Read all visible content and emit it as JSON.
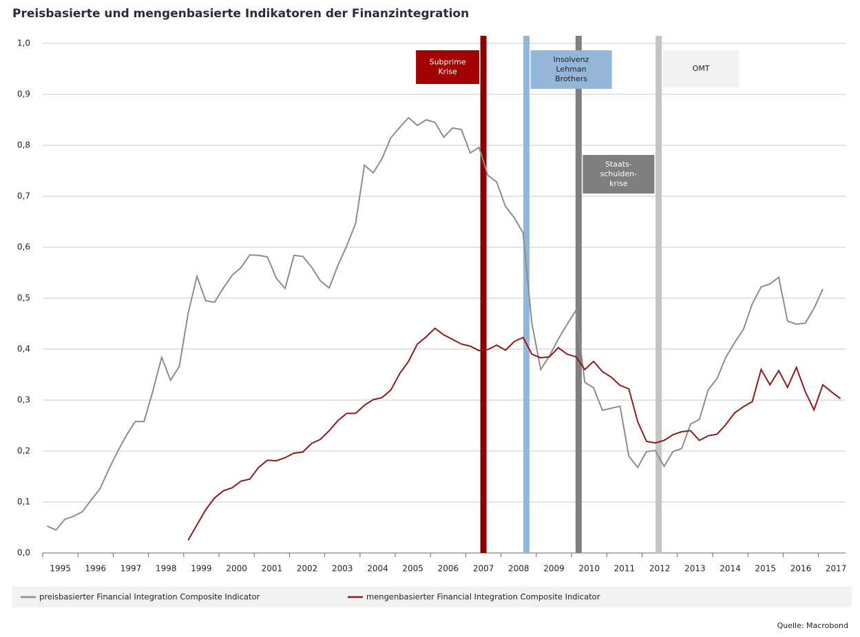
{
  "chart_data": {
    "type": "line",
    "title": "Preisbasierte und mengenbasierte Indikatoren der Finanzintegration",
    "source": "Quelle: Macrobond",
    "xlim": [
      1995,
      2017.77
    ],
    "xticks": [
      1995,
      1996,
      1997,
      1998,
      1999,
      2000,
      2001,
      2002,
      2003,
      2004,
      2005,
      2006,
      2007,
      2008,
      2009,
      2010,
      2011,
      2012,
      2013,
      2014,
      2015,
      2016,
      2017
    ],
    "ylim": [
      0,
      1
    ],
    "yticks": [
      {
        "value": 0,
        "label": "0,0"
      },
      {
        "value": 0.1,
        "label": "0,1"
      },
      {
        "value": 0.2,
        "label": "0,2"
      },
      {
        "value": 0.3,
        "label": "0,3"
      },
      {
        "value": 0.4,
        "label": "0,4"
      },
      {
        "value": 0.5,
        "label": "0,5"
      },
      {
        "value": 0.6,
        "label": "0,6"
      },
      {
        "value": 0.7,
        "label": "0,7"
      },
      {
        "value": 0.8,
        "label": "0,8"
      },
      {
        "value": 0.9,
        "label": "0,9"
      },
      {
        "value": 1,
        "label": "1,0"
      }
    ],
    "grid": true,
    "series": [
      {
        "name": "preisbasierter Financial Integration Composite Indicator",
        "color": "#8c8c8c",
        "x": [
          1995.125,
          1995.375,
          1995.625,
          1995.875,
          1996.125,
          1996.375,
          1996.625,
          1996.875,
          1997.125,
          1997.375,
          1997.625,
          1997.875,
          1998.125,
          1998.375,
          1998.625,
          1998.875,
          1999.125,
          1999.375,
          1999.625,
          1999.875,
          2000.125,
          2000.375,
          2000.625,
          2000.875,
          2001.125,
          2001.375,
          2001.625,
          2001.875,
          2002.125,
          2002.375,
          2002.625,
          2002.875,
          2003.125,
          2003.375,
          2003.625,
          2003.875,
          2004.125,
          2004.375,
          2004.625,
          2004.875,
          2005.125,
          2005.375,
          2005.625,
          2005.875,
          2006.125,
          2006.375,
          2006.625,
          2006.875,
          2007.125,
          2007.375,
          2007.625,
          2007.875,
          2008.125,
          2008.375,
          2008.625,
          2008.875,
          2009.125,
          2009.375,
          2009.625,
          2009.875,
          2010.125,
          2010.375,
          2010.625,
          2010.875,
          2011.125,
          2011.375,
          2011.625,
          2011.875,
          2012.125,
          2012.375,
          2012.625,
          2012.875,
          2013.125,
          2013.375,
          2013.625,
          2013.875,
          2014.125,
          2014.375,
          2014.625,
          2014.875,
          2015.125,
          2015.375,
          2015.625,
          2015.875,
          2016.125,
          2016.375,
          2016.625,
          2016.875,
          2017.125
        ],
        "values": [
          0.053,
          0.045,
          0.066,
          0.072,
          0.081,
          0.104,
          0.126,
          0.164,
          0.199,
          0.231,
          0.258,
          0.258,
          0.318,
          0.384,
          0.339,
          0.366,
          0.47,
          0.543,
          0.495,
          0.492,
          0.52,
          0.545,
          0.56,
          0.585,
          0.584,
          0.581,
          0.539,
          0.519,
          0.584,
          0.582,
          0.561,
          0.534,
          0.52,
          0.565,
          0.603,
          0.647,
          0.761,
          0.746,
          0.774,
          0.815,
          0.835,
          0.854,
          0.839,
          0.85,
          0.845,
          0.816,
          0.834,
          0.831,
          0.785,
          0.796,
          0.741,
          0.728,
          0.68,
          0.658,
          0.628,
          0.45,
          0.36,
          0.387,
          0.42,
          0.449,
          0.476,
          0.335,
          0.324,
          0.28,
          0.284,
          0.288,
          0.19,
          0.168,
          0.199,
          0.201,
          0.17,
          0.199,
          0.205,
          0.253,
          0.262,
          0.32,
          0.342,
          0.384,
          0.413,
          0.439,
          0.489,
          0.522,
          0.528,
          0.541,
          0.455,
          0.449,
          0.451,
          0.48,
          0.518
        ]
      },
      {
        "name": "mengenbasierter Financial Integration Composite Indicator",
        "color": "#8b1a1a",
        "x": [
          1999.125,
          1999.375,
          1999.625,
          1999.875,
          2000.125,
          2000.375,
          2000.625,
          2000.875,
          2001.125,
          2001.375,
          2001.625,
          2001.875,
          2002.125,
          2002.375,
          2002.625,
          2002.875,
          2003.125,
          2003.375,
          2003.625,
          2003.875,
          2004.125,
          2004.375,
          2004.625,
          2004.875,
          2005.125,
          2005.375,
          2005.625,
          2005.875,
          2006.125,
          2006.375,
          2006.625,
          2006.875,
          2007.125,
          2007.375,
          2007.625,
          2007.875,
          2008.125,
          2008.375,
          2008.625,
          2008.875,
          2009.125,
          2009.375,
          2009.625,
          2009.875,
          2010.125,
          2010.375,
          2010.625,
          2010.875,
          2011.125,
          2011.375,
          2011.625,
          2011.875,
          2012.125,
          2012.375,
          2012.625,
          2012.875,
          2013.125,
          2013.375,
          2013.625,
          2013.875,
          2014.125,
          2014.375,
          2014.625,
          2014.875,
          2015.125,
          2015.375,
          2015.625,
          2015.875,
          2016.125,
          2016.375,
          2016.625,
          2016.875,
          2017.125,
          2017.375,
          2017.625
        ],
        "values": [
          0.025,
          0.055,
          0.085,
          0.108,
          0.122,
          0.128,
          0.141,
          0.145,
          0.168,
          0.182,
          0.181,
          0.187,
          0.196,
          0.198,
          0.215,
          0.223,
          0.24,
          0.26,
          0.274,
          0.274,
          0.29,
          0.301,
          0.305,
          0.32,
          0.352,
          0.376,
          0.41,
          0.424,
          0.441,
          0.428,
          0.419,
          0.41,
          0.406,
          0.397,
          0.399,
          0.408,
          0.398,
          0.415,
          0.423,
          0.39,
          0.383,
          0.385,
          0.403,
          0.39,
          0.385,
          0.36,
          0.376,
          0.356,
          0.345,
          0.329,
          0.322,
          0.258,
          0.219,
          0.216,
          0.221,
          0.232,
          0.238,
          0.24,
          0.221,
          0.23,
          0.233,
          0.252,
          0.275,
          0.287,
          0.297,
          0.36,
          0.33,
          0.358,
          0.325,
          0.364,
          0.317,
          0.281,
          0.33,
          0.316,
          0.303
        ]
      }
    ],
    "events": [
      {
        "lines": [
          "Subprime",
          "Krise"
        ],
        "x": 2007.5,
        "color": "#8b0000",
        "box_color": "#a30000",
        "text_color": "#ffffff"
      },
      {
        "lines": [
          "Insolvenz",
          "Lehman",
          "Brothers"
        ],
        "x": 2008.72,
        "color": "#94b6d9",
        "box_color": "#94b6d9",
        "text_color": "#222222"
      },
      {
        "lines": [
          "Staats-",
          "schulden-",
          "krise"
        ],
        "x": 2010.2,
        "color": "#7f7f7f",
        "box_color": "#7f7f7f",
        "text_color": "#ffffff"
      },
      {
        "lines": [
          "OMT"
        ],
        "x": 2012.47,
        "color": "#c4c4c4",
        "box_color": "#f2f2f2",
        "text_color": "#222222"
      }
    ]
  }
}
